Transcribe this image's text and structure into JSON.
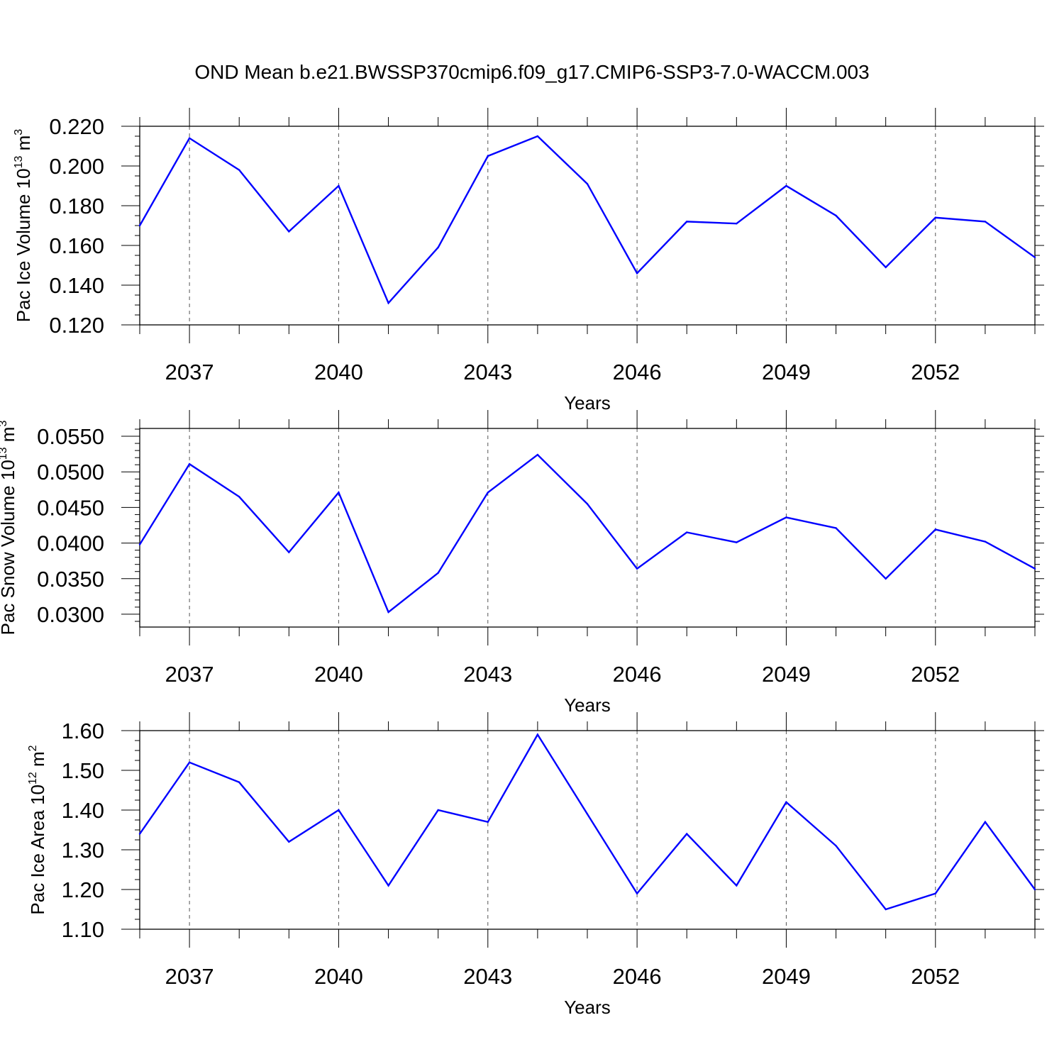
{
  "title": "OND Mean b.e21.BWSSP370cmip6.f09_g17.CMIP6-SSP3-7.0-WACCM.003",
  "colors": {
    "line": "#0000ff",
    "axis": "#000000",
    "grid": "#555555"
  },
  "chart_data": [
    {
      "type": "line",
      "xlabel": "Years",
      "ylabel": "Pac Ice Volume 10",
      "ylabel_exponent": "13",
      "ylabel_unit": "m",
      "ylabel_unit_exponent": "3",
      "x": [
        2036,
        2037,
        2038,
        2039,
        2040,
        2041,
        2042,
        2043,
        2044,
        2045,
        2046,
        2047,
        2048,
        2049,
        2050,
        2051,
        2052,
        2053,
        2054
      ],
      "values": [
        0.17,
        0.214,
        0.198,
        0.167,
        0.19,
        0.131,
        0.159,
        0.205,
        0.215,
        0.191,
        0.146,
        0.172,
        0.171,
        0.19,
        0.175,
        0.149,
        0.174,
        0.172,
        0.154
      ],
      "xlim": [
        2036,
        2054
      ],
      "ylim": [
        0.12,
        0.22
      ],
      "xticks": [
        2037,
        2040,
        2043,
        2046,
        2049,
        2052
      ],
      "xtick_labels": [
        "2037",
        "2040",
        "2043",
        "2046",
        "2049",
        "2052"
      ],
      "yticks": [
        0.12,
        0.14,
        0.16,
        0.18,
        0.2,
        0.22
      ],
      "ytick_labels": [
        "0.120",
        "0.140",
        "0.160",
        "0.180",
        "0.200",
        "0.220"
      ],
      "yminor_step": 0.005,
      "grid": "dashed vertical at major x ticks"
    },
    {
      "type": "line",
      "xlabel": "Years",
      "ylabel": "Pac Snow Volume 10",
      "ylabel_exponent": "13",
      "ylabel_unit": "m",
      "ylabel_unit_exponent": "3",
      "x": [
        2036,
        2037,
        2038,
        2039,
        2040,
        2041,
        2042,
        2043,
        2044,
        2045,
        2046,
        2047,
        2048,
        2049,
        2050,
        2051,
        2052,
        2053,
        2054
      ],
      "values": [
        0.0398,
        0.0511,
        0.0465,
        0.0387,
        0.0471,
        0.0303,
        0.0358,
        0.0471,
        0.0524,
        0.0455,
        0.0364,
        0.0415,
        0.0401,
        0.0436,
        0.0421,
        0.035,
        0.0419,
        0.0402,
        0.0364
      ],
      "xlim": [
        2036,
        2054
      ],
      "ylim": [
        0.0282,
        0.0561
      ],
      "xticks": [
        2037,
        2040,
        2043,
        2046,
        2049,
        2052
      ],
      "xtick_labels": [
        "2037",
        "2040",
        "2043",
        "2046",
        "2049",
        "2052"
      ],
      "yticks": [
        0.03,
        0.035,
        0.04,
        0.045,
        0.05,
        0.055
      ],
      "ytick_labels": [
        "0.0300",
        "0.0350",
        "0.0400",
        "0.0450",
        "0.0500",
        "0.0550"
      ],
      "yminor_step": 0.001,
      "grid": "dashed vertical at major x ticks"
    },
    {
      "type": "line",
      "xlabel": "Years",
      "ylabel": "Pac Ice Area 10",
      "ylabel_exponent": "12",
      "ylabel_unit": "m",
      "ylabel_unit_exponent": "2",
      "x": [
        2036,
        2037,
        2038,
        2039,
        2040,
        2041,
        2042,
        2043,
        2044,
        2045,
        2046,
        2047,
        2048,
        2049,
        2050,
        2051,
        2052,
        2053,
        2054
      ],
      "values": [
        1.34,
        1.52,
        1.47,
        1.32,
        1.4,
        1.21,
        1.4,
        1.37,
        1.59,
        1.39,
        1.19,
        1.34,
        1.21,
        1.42,
        1.31,
        1.15,
        1.19,
        1.37,
        1.2
      ],
      "xlim": [
        2036,
        2054
      ],
      "ylim": [
        1.1,
        1.6
      ],
      "xticks": [
        2037,
        2040,
        2043,
        2046,
        2049,
        2052
      ],
      "xtick_labels": [
        "2037",
        "2040",
        "2043",
        "2046",
        "2049",
        "2052"
      ],
      "yticks": [
        1.1,
        1.2,
        1.3,
        1.4,
        1.5,
        1.6
      ],
      "ytick_labels": [
        "1.10",
        "1.20",
        "1.30",
        "1.40",
        "1.50",
        "1.60"
      ],
      "yminor_step": 0.025,
      "grid": "dashed vertical at major x ticks"
    }
  ]
}
